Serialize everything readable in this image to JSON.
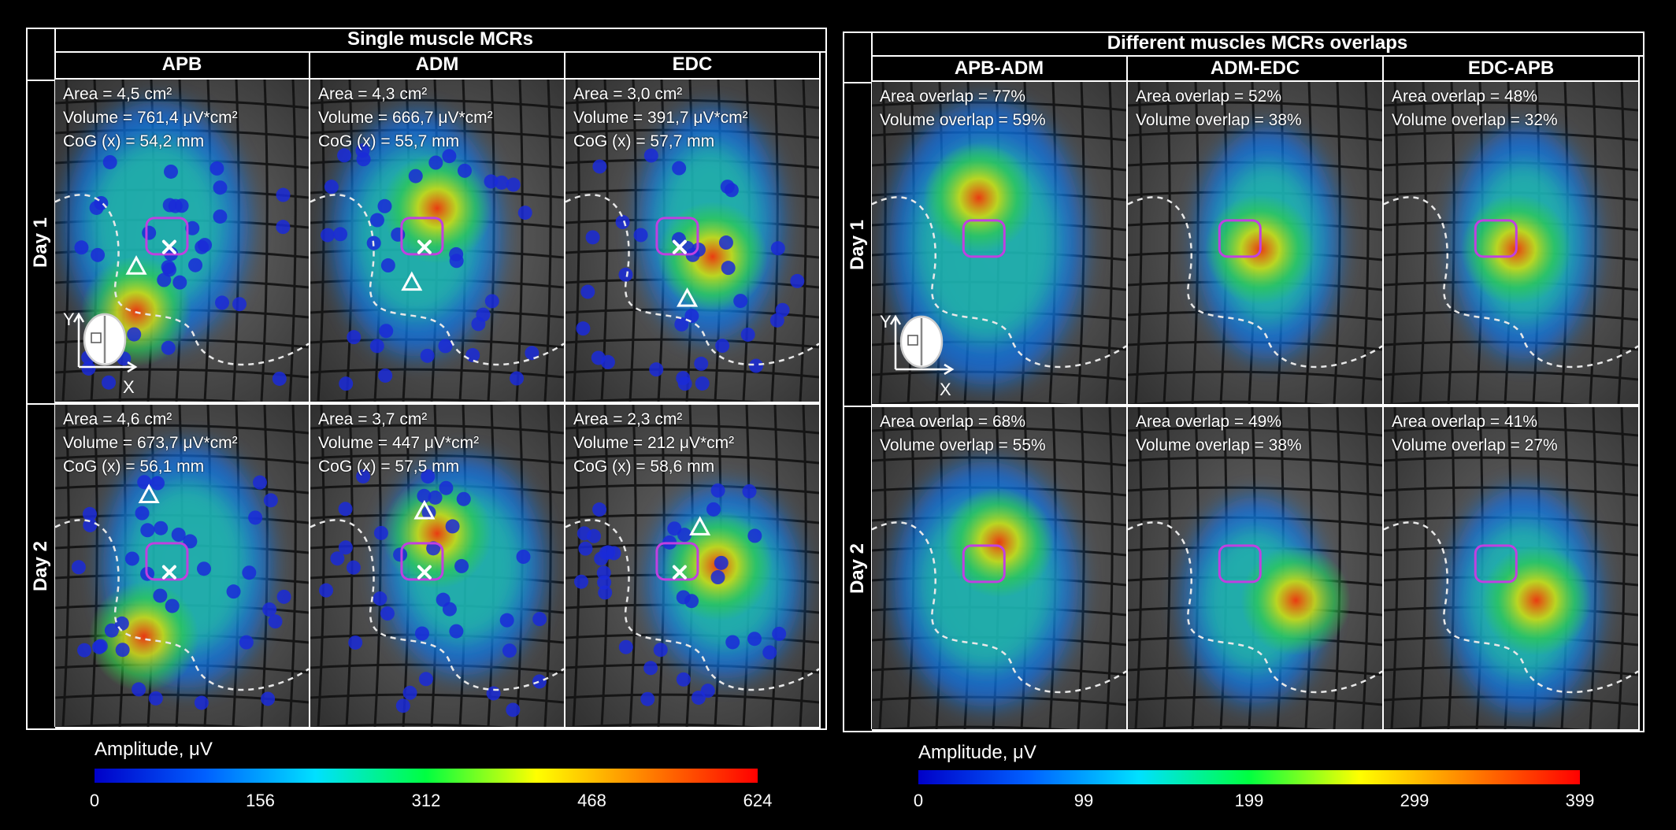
{
  "left": {
    "title": "Single muscle MCRs",
    "columns": [
      "APB",
      "ADM",
      "EDC"
    ],
    "rows": [
      "Day 1",
      "Day 2"
    ],
    "cells": [
      [
        {
          "lines": [
            "Area = 4,5 cm²",
            "Volume = 761,4 μV*cm²",
            "CoG (x) = 54,2 mm"
          ]
        },
        {
          "lines": [
            "Area = 4,3 cm²",
            "Volume = 666,7 μV*cm²",
            "CoG (x) = 55,7 mm"
          ]
        },
        {
          "lines": [
            "Area = 3,0 cm²",
            "Volume = 391,7 μV*cm²",
            "CoG (x) = 57,7 mm"
          ]
        }
      ],
      [
        {
          "lines": [
            "Area = 4,6 cm²",
            "Volume = 673,7 μV*cm²",
            "CoG (x) = 56,1 mm"
          ]
        },
        {
          "lines": [
            "Area = 3,7 cm²",
            "Volume = 447 μV*cm²",
            "CoG (x) = 57,5 mm"
          ]
        },
        {
          "lines": [
            "Area = 2,3 cm²",
            "Volume = 212 μV*cm²",
            "CoG (x) = 58,6 mm"
          ]
        }
      ]
    ],
    "colorbar": {
      "label": "Amplitude, μV",
      "ticks": [
        "0",
        "156",
        "312",
        "468",
        "624"
      ]
    }
  },
  "right": {
    "title": "Different muscles MCRs overlaps",
    "columns": [
      "APB-ADM",
      "ADM-EDC",
      "EDC-APB"
    ],
    "rows": [
      "Day 1",
      "Day 2"
    ],
    "cells": [
      [
        {
          "lines": [
            "Area overlap = 77%",
            "Volume overlap = 59%"
          ]
        },
        {
          "lines": [
            "Area overlap = 52%",
            "Volume overlap = 38%"
          ]
        },
        {
          "lines": [
            "Area overlap = 48%",
            "Volume overlap = 32%"
          ]
        }
      ],
      [
        {
          "lines": [
            "Area overlap = 68%",
            "Volume overlap = 55%"
          ]
        },
        {
          "lines": [
            "Area overlap = 49%",
            "Volume overlap = 38%"
          ]
        },
        {
          "lines": [
            "Area overlap = 41%",
            "Volume overlap = 27%"
          ]
        }
      ]
    ],
    "colorbar": {
      "label": "Amplitude, μV",
      "ticks": [
        "0",
        "99",
        "199",
        "299",
        "399"
      ]
    }
  },
  "axes_icon": {
    "y": "Y",
    "x": "X"
  },
  "colors": {
    "jet": [
      "#0000c8",
      "#0060ff",
      "#00e0ff",
      "#00ff40",
      "#ffff00",
      "#ff8000",
      "#ff0000"
    ],
    "roi": "#c040e0",
    "background": "#000000"
  }
}
